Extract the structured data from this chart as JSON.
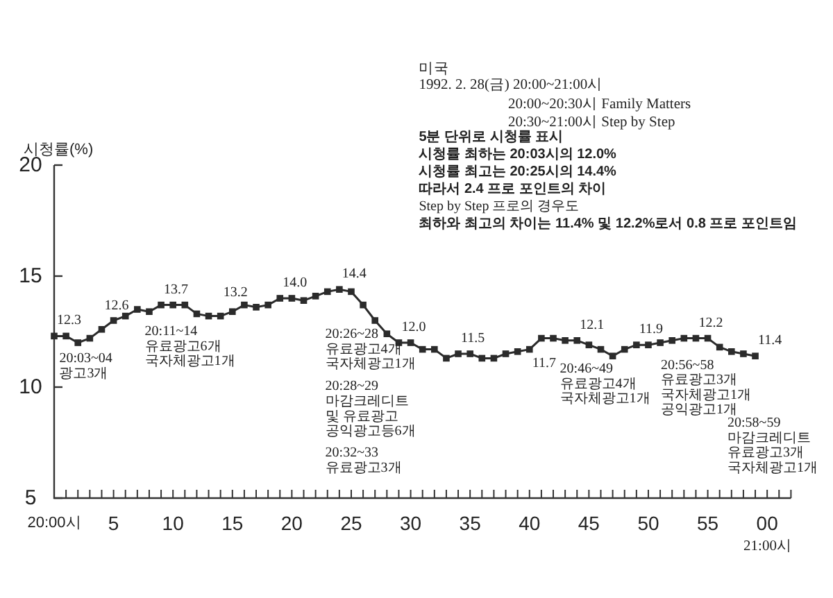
{
  "chart_data": {
    "type": "line",
    "ylabel": "시청률(%)",
    "x": [
      "1992-02-28T20:00",
      "1992-02-28T20:01",
      "1992-02-28T20:02",
      "1992-02-28T20:03",
      "1992-02-28T20:04",
      "1992-02-28T20:05",
      "1992-02-28T20:06",
      "1992-02-28T20:07",
      "1992-02-28T20:08",
      "1992-02-28T20:09",
      "1992-02-28T20:10",
      "1992-02-28T20:11",
      "1992-02-28T20:12",
      "1992-02-28T20:13",
      "1992-02-28T20:14",
      "1992-02-28T20:15",
      "1992-02-28T20:16",
      "1992-02-28T20:17",
      "1992-02-28T20:18",
      "1992-02-28T20:19",
      "1992-02-28T20:20",
      "1992-02-28T20:21",
      "1992-02-28T20:22",
      "1992-02-28T20:23",
      "1992-02-28T20:24",
      "1992-02-28T20:25",
      "1992-02-28T20:26",
      "1992-02-28T20:27",
      "1992-02-28T20:28",
      "1992-02-28T20:29",
      "1992-02-28T20:30",
      "1992-02-28T20:31",
      "1992-02-28T20:32",
      "1992-02-28T20:33",
      "1992-02-28T20:34",
      "1992-02-28T20:35",
      "1992-02-28T20:36",
      "1992-02-28T20:37",
      "1992-02-28T20:38",
      "1992-02-28T20:39",
      "1992-02-28T20:40",
      "1992-02-28T20:41",
      "1992-02-28T20:42",
      "1992-02-28T20:43",
      "1992-02-28T20:44",
      "1992-02-28T20:45",
      "1992-02-28T20:46",
      "1992-02-28T20:47",
      "1992-02-28T20:48",
      "1992-02-28T20:49",
      "1992-02-28T20:50",
      "1992-02-28T20:51",
      "1992-02-28T20:52",
      "1992-02-28T20:53",
      "1992-02-28T20:54",
      "1992-02-28T20:55",
      "1992-02-28T20:56",
      "1992-02-28T20:57",
      "1992-02-28T20:58",
      "1992-02-28T20:59"
    ],
    "xlim": [
      "1992-02-28T20:00",
      "1992-02-28T21:02"
    ],
    "xticks": [
      {
        "value": "1992-02-28T20:00",
        "label": "20:00시"
      },
      {
        "value": "1992-02-28T20:01",
        "label": null
      },
      {
        "value": "1992-02-28T20:02",
        "label": null
      },
      {
        "value": "1992-02-28T20:03",
        "label": null
      },
      {
        "value": "1992-02-28T20:04",
        "label": null
      },
      {
        "value": "1992-02-28T20:05",
        "label": "5"
      },
      {
        "value": "1992-02-28T20:06",
        "label": null
      },
      {
        "value": "1992-02-28T20:07",
        "label": null
      },
      {
        "value": "1992-02-28T20:08",
        "label": null
      },
      {
        "value": "1992-02-28T20:09",
        "label": null
      },
      {
        "value": "1992-02-28T20:10",
        "label": "10"
      },
      {
        "value": "1992-02-28T20:11",
        "label": null
      },
      {
        "value": "1992-02-28T20:12",
        "label": null
      },
      {
        "value": "1992-02-28T20:13",
        "label": null
      },
      {
        "value": "1992-02-28T20:14",
        "label": null
      },
      {
        "value": "1992-02-28T20:15",
        "label": "15"
      },
      {
        "value": "1992-02-28T20:16",
        "label": null
      },
      {
        "value": "1992-02-28T20:17",
        "label": null
      },
      {
        "value": "1992-02-28T20:18",
        "label": null
      },
      {
        "value": "1992-02-28T20:19",
        "label": null
      },
      {
        "value": "1992-02-28T20:20",
        "label": "20"
      },
      {
        "value": "1992-02-28T20:21",
        "label": null
      },
      {
        "value": "1992-02-28T20:22",
        "label": null
      },
      {
        "value": "1992-02-28T20:23",
        "label": null
      },
      {
        "value": "1992-02-28T20:24",
        "label": null
      },
      {
        "value": "1992-02-28T20:25",
        "label": "25"
      },
      {
        "value": "1992-02-28T20:26",
        "label": null
      },
      {
        "value": "1992-02-28T20:27",
        "label": null
      },
      {
        "value": "1992-02-28T20:28",
        "label": null
      },
      {
        "value": "1992-02-28T20:29",
        "label": null
      },
      {
        "value": "1992-02-28T20:30",
        "label": "30"
      },
      {
        "value": "1992-02-28T20:31",
        "label": null
      },
      {
        "value": "1992-02-28T20:32",
        "label": null
      },
      {
        "value": "1992-02-28T20:33",
        "label": null
      },
      {
        "value": "1992-02-28T20:34",
        "label": null
      },
      {
        "value": "1992-02-28T20:35",
        "label": "35"
      },
      {
        "value": "1992-02-28T20:36",
        "label": null
      },
      {
        "value": "1992-02-28T20:37",
        "label": null
      },
      {
        "value": "1992-02-28T20:38",
        "label": null
      },
      {
        "value": "1992-02-28T20:39",
        "label": null
      },
      {
        "value": "1992-02-28T20:40",
        "label": "40"
      },
      {
        "value": "1992-02-28T20:41",
        "label": null
      },
      {
        "value": "1992-02-28T20:42",
        "label": null
      },
      {
        "value": "1992-02-28T20:43",
        "label": null
      },
      {
        "value": "1992-02-28T20:44",
        "label": null
      },
      {
        "value": "1992-02-28T20:45",
        "label": "45"
      },
      {
        "value": "1992-02-28T20:46",
        "label": null
      },
      {
        "value": "1992-02-28T20:47",
        "label": null
      },
      {
        "value": "1992-02-28T20:48",
        "label": null
      },
      {
        "value": "1992-02-28T20:49",
        "label": null
      },
      {
        "value": "1992-02-28T20:50",
        "label": "50"
      },
      {
        "value": "1992-02-28T20:51",
        "label": null
      },
      {
        "value": "1992-02-28T20:52",
        "label": null
      },
      {
        "value": "1992-02-28T20:53",
        "label": null
      },
      {
        "value": "1992-02-28T20:54",
        "label": null
      },
      {
        "value": "1992-02-28T20:55",
        "label": "55"
      },
      {
        "value": "1992-02-28T20:56",
        "label": null
      },
      {
        "value": "1992-02-28T20:57",
        "label": null
      },
      {
        "value": "1992-02-28T20:58",
        "label": null
      },
      {
        "value": "1992-02-28T20:59",
        "label": null
      },
      {
        "value": "1992-02-28T21:00",
        "label": "00"
      },
      {
        "value": "1992-02-28T21:01",
        "label": null
      },
      {
        "value": "1992-02-28T21:02",
        "label": null
      }
    ],
    "ylim": [
      5,
      20
    ],
    "yticks": [
      5,
      10,
      15,
      20
    ],
    "marker": "square",
    "line_style": "solid",
    "series": [
      {
        "color": "#2b2b2b",
        "values": [
          12.3,
          12.3,
          12.0,
          12.2,
          12.6,
          13.0,
          13.2,
          13.5,
          13.4,
          13.7,
          13.7,
          13.7,
          13.3,
          13.2,
          13.2,
          13.4,
          13.7,
          13.6,
          13.7,
          14.0,
          14.0,
          13.9,
          14.1,
          14.3,
          14.4,
          14.3,
          13.7,
          13.0,
          12.4,
          12.0,
          12.0,
          11.7,
          11.7,
          11.3,
          11.5,
          11.5,
          11.3,
          11.3,
          11.5,
          11.6,
          11.7,
          12.2,
          12.2,
          12.1,
          12.1,
          11.9,
          11.7,
          11.4,
          11.7,
          11.9,
          11.9,
          12.0,
          12.1,
          12.2,
          12.2,
          12.2,
          11.8,
          11.6,
          11.5,
          11.4
        ],
        "value_labels": [
          "12.3",
          null,
          null,
          null,
          "12.6",
          null,
          null,
          null,
          null,
          "13.7",
          null,
          null,
          null,
          null,
          "13.2",
          null,
          null,
          null,
          null,
          "14.0",
          null,
          null,
          null,
          null,
          "14.4",
          null,
          null,
          null,
          null,
          "12.0",
          null,
          null,
          null,
          null,
          "11.5",
          null,
          null,
          null,
          null,
          null,
          "11.7",
          null,
          null,
          null,
          "12.1",
          null,
          null,
          null,
          null,
          "11.9",
          null,
          null,
          null,
          null,
          "12.2",
          null,
          null,
          null,
          null,
          "11.4"
        ]
      }
    ],
    "annotations": [
      "미국",
      "1992. 2. 28(금) 20:00~21:00시",
      "20:00~20:30시 Family Matters",
      "20:30~21:00시 Step by Step",
      "5분 단위로 시청률 표시",
      "시청률 최하는 20:03시의 12.0%",
      "시청률 최고는 20:25시의 14.4%",
      "따라서 2.4 프로 포인트의 차이",
      "Step by Step 프로의 경우도",
      "최하와 최고의 차이는 11.4% 및 12.2%로서 0.8 프로 포인트임",
      "20:03~04\n광고3개",
      "20:11~14\n유료광고6개\n국자체광고1개",
      "20:26~28\n유료광고4개\n국자체광고1개",
      "20:28~29\n마감크레디트\n및 유료광고\n공익광고등6개",
      "20:32~33\n유료광고3개",
      "20:46~49\n유료광고4개\n국자체광고1개",
      "20:56~58\n유료광고3개\n국자체광고1개\n공익광고1개",
      "20:58~59\n마감크레디트\n유료광고3개\n국자체광고1개",
      "21:00시"
    ]
  }
}
